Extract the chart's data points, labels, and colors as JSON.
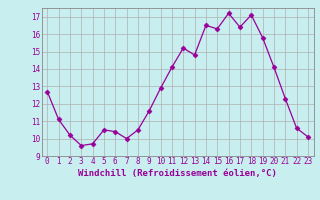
{
  "x": [
    0,
    1,
    2,
    3,
    4,
    5,
    6,
    7,
    8,
    9,
    10,
    11,
    12,
    13,
    14,
    15,
    16,
    17,
    18,
    19,
    20,
    21,
    22,
    23
  ],
  "y": [
    12.7,
    11.1,
    10.2,
    9.6,
    9.7,
    10.5,
    10.4,
    10.0,
    10.5,
    11.6,
    12.9,
    14.1,
    15.2,
    14.8,
    16.5,
    16.3,
    17.2,
    16.4,
    17.1,
    15.8,
    14.1,
    12.3,
    10.6,
    10.1
  ],
  "line_color": "#990099",
  "marker": "D",
  "marker_size": 2.5,
  "bg_color": "#C8EEF0",
  "grid_color": "#B0B0B0",
  "xlabel": "Windchill (Refroidissement éolien,°C)",
  "xlabel_color": "#990099",
  "ylim": [
    9,
    17.5
  ],
  "yticks": [
    9,
    10,
    11,
    12,
    13,
    14,
    15,
    16,
    17
  ],
  "xticks": [
    0,
    1,
    2,
    3,
    4,
    5,
    6,
    7,
    8,
    9,
    10,
    11,
    12,
    13,
    14,
    15,
    16,
    17,
    18,
    19,
    20,
    21,
    22,
    23
  ],
  "tick_color": "#990099",
  "spine_color": "#888888",
  "tick_fontsize": 5.5,
  "xlabel_fontsize": 6.5
}
